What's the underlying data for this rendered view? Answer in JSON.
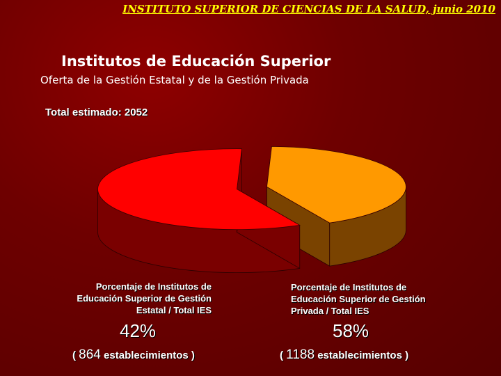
{
  "header": {
    "institution": "INSTITUTO SUPERIOR DE CIENCIAS DE LA SALUD, junio 2010"
  },
  "slide": {
    "title": "Institutos de Educación Superior",
    "subtitle": "Oferta de la Gestión Estatal y de la Gestión Privada",
    "total_label": "Total estimado:",
    "total_value": "2052"
  },
  "chart_data": {
    "type": "pie",
    "title": "",
    "series": [
      {
        "name": "Porcentaje de Institutos de Educación Superior de Gestión Estatal / Total IES",
        "percent": 42,
        "percent_label": "42%",
        "value": 864,
        "count_open": "(",
        "count_value": "864",
        "count_text": "establecimientos )",
        "color": "#ff9900",
        "side_color": "#7a4300"
      },
      {
        "name": "Porcentaje de Institutos de Educación Superior de Gestión Privada / Total IES",
        "percent": 58,
        "percent_label": "58%",
        "value": 1188,
        "count_open": "(",
        "count_value": "1188",
        "count_text": "establecimientos )",
        "color": "#ff0000",
        "side_color": "#7a0000"
      }
    ],
    "exploded": true,
    "three_d": true
  }
}
